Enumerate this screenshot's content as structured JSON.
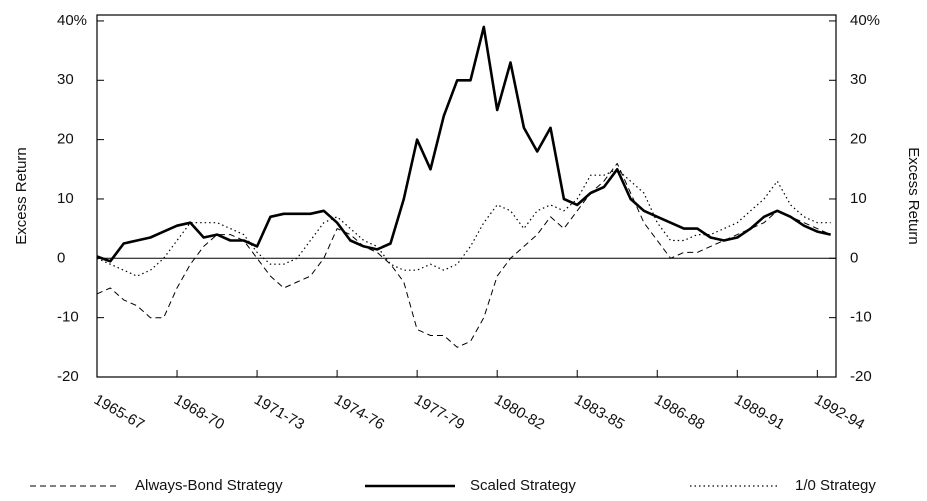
{
  "chart_data": {
    "type": "line",
    "y_label": "Excess Return",
    "y2_label": "Excess Return",
    "x": [
      1965,
      1965.5,
      1966,
      1966.5,
      1967,
      1967.5,
      1968,
      1968.5,
      1969,
      1969.5,
      1970,
      1970.5,
      1971,
      1971.5,
      1972,
      1972.5,
      1973,
      1973.5,
      1974,
      1974.5,
      1975,
      1975.5,
      1976,
      1976.5,
      1977,
      1977.5,
      1978,
      1978.5,
      1979,
      1979.5,
      1980,
      1980.5,
      1981,
      1981.5,
      1982,
      1982.5,
      1983,
      1983.5,
      1984,
      1984.5,
      1985,
      1985.5,
      1986,
      1986.5,
      1987,
      1987.5,
      1988,
      1988.5,
      1989,
      1989.5,
      1990,
      1990.5,
      1991,
      1991.5,
      1992,
      1992.5
    ],
    "series": [
      {
        "name": "Always-Bond Strategy",
        "color": "#000000",
        "style": "dashed",
        "values": [
          -6,
          -5,
          -7,
          -8,
          -10,
          -10,
          -5,
          -1,
          2,
          4,
          4,
          3,
          0,
          -3,
          -5,
          -4,
          -3,
          0,
          5,
          4,
          2,
          1,
          -1,
          -4,
          -12,
          -13,
          -13,
          -15,
          -14,
          -10,
          -3,
          0,
          2,
          4,
          7,
          5,
          8,
          11,
          13,
          16,
          11,
          6,
          3,
          0,
          1,
          1,
          2,
          3,
          4,
          5,
          6,
          8,
          7,
          6,
          5,
          4
        ]
      },
      {
        "name": "Scaled Strategy",
        "color": "#000000",
        "style": "solid",
        "values": [
          0.3,
          -0.5,
          2.5,
          3,
          3.5,
          4.5,
          5.5,
          6,
          3.5,
          4,
          3,
          3,
          2,
          7,
          7.5,
          7.5,
          7.5,
          8,
          6,
          3,
          2,
          1.5,
          2.5,
          10,
          20,
          15,
          24,
          30,
          30,
          39,
          25,
          33,
          22,
          18,
          22,
          10,
          9,
          11,
          12,
          15,
          10,
          8,
          7,
          6,
          5,
          5,
          3.5,
          3,
          3.5,
          5,
          7,
          8,
          7,
          5.5,
          4.5,
          4
        ]
      },
      {
        "name": "1/0 Strategy",
        "color": "#000000",
        "style": "dotted",
        "values": [
          0,
          -1,
          -2,
          -3,
          -2,
          0,
          3,
          6,
          6,
          6,
          5,
          4,
          1,
          -1,
          -1,
          0,
          3,
          6,
          7,
          5,
          3,
          2,
          -1,
          -2,
          -2,
          -1,
          -2,
          -1,
          2,
          6,
          9,
          8,
          5,
          8,
          9,
          8,
          10,
          14,
          14,
          15,
          13,
          11,
          6,
          3,
          3,
          4,
          4,
          5,
          6,
          8,
          10,
          13,
          9,
          7,
          6,
          6
        ]
      }
    ],
    "xlim": [
      1965,
      1992.7
    ],
    "xticks": [
      {
        "value": 1965,
        "label": "1965-67"
      },
      {
        "value": 1968,
        "label": "1968-70"
      },
      {
        "value": 1971,
        "label": "1971-73"
      },
      {
        "value": 1974,
        "label": "1974-76"
      },
      {
        "value": 1977,
        "label": "1977-79"
      },
      {
        "value": 1980,
        "label": "1980-82"
      },
      {
        "value": 1983,
        "label": "1983-85"
      },
      {
        "value": 1986,
        "label": "1986-88"
      },
      {
        "value": 1989,
        "label": "1989-91"
      },
      {
        "value": 1992,
        "label": "1992-94"
      }
    ],
    "ylim": [
      -20,
      41
    ],
    "yticks": [
      -20,
      -10,
      0,
      10,
      20,
      30,
      {
        "value": 40,
        "label": "40%"
      }
    ],
    "y2lim": [
      -20,
      41
    ],
    "y2ticks": [
      -20,
      -10,
      0,
      10,
      20,
      30,
      {
        "value": 40,
        "label": "40%"
      }
    ],
    "grid": false,
    "legend": "bottom"
  }
}
